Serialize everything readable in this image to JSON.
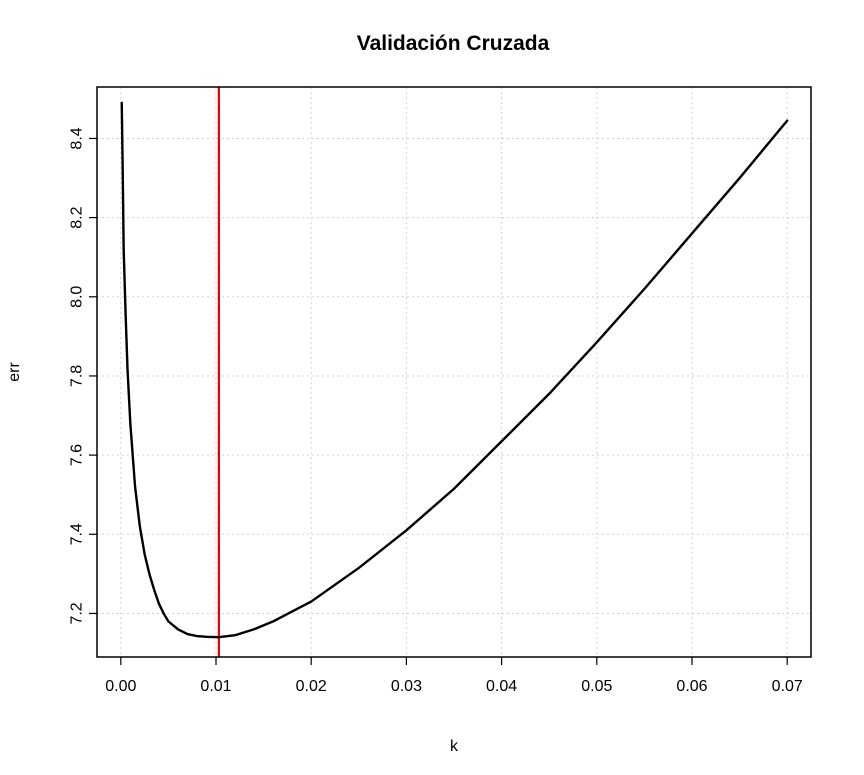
{
  "chart_data": {
    "type": "line",
    "title": "Validación Cruzada",
    "xlabel": "k",
    "ylabel": "err",
    "xlim": [
      -0.0025,
      0.0725
    ],
    "ylim": [
      7.09,
      8.53
    ],
    "x_ticks": [
      0.0,
      0.01,
      0.02,
      0.03,
      0.04,
      0.05,
      0.06,
      0.07
    ],
    "x_tick_labels": [
      "0.00",
      "0.01",
      "0.02",
      "0.03",
      "0.04",
      "0.05",
      "0.06",
      "0.07"
    ],
    "y_ticks": [
      7.2,
      7.4,
      7.6,
      7.8,
      8.0,
      8.2,
      8.4
    ],
    "y_tick_labels": [
      "7.2",
      "7.4",
      "7.6",
      "7.8",
      "8.0",
      "8.2",
      "8.4"
    ],
    "grid": true,
    "series": [
      {
        "color": "#000000",
        "x": [
          0.0001,
          0.0002,
          0.0003,
          0.0005,
          0.0007,
          0.001,
          0.0015,
          0.002,
          0.0025,
          0.003,
          0.0035,
          0.004,
          0.0045,
          0.005,
          0.006,
          0.007,
          0.008,
          0.009,
          0.0103,
          0.012,
          0.014,
          0.016,
          0.018,
          0.02,
          0.025,
          0.03,
          0.035,
          0.04,
          0.045,
          0.05,
          0.055,
          0.06,
          0.065,
          0.07
        ],
        "y": [
          8.49,
          8.32,
          8.12,
          7.96,
          7.82,
          7.68,
          7.52,
          7.42,
          7.35,
          7.3,
          7.26,
          7.225,
          7.2,
          7.18,
          7.16,
          7.148,
          7.143,
          7.141,
          7.14,
          7.145,
          7.16,
          7.18,
          7.205,
          7.23,
          7.315,
          7.41,
          7.515,
          7.635,
          7.755,
          7.885,
          8.02,
          8.16,
          8.3,
          8.445
        ]
      }
    ],
    "vlines": [
      {
        "x": 0.0103,
        "color": "#e00000"
      }
    ]
  }
}
